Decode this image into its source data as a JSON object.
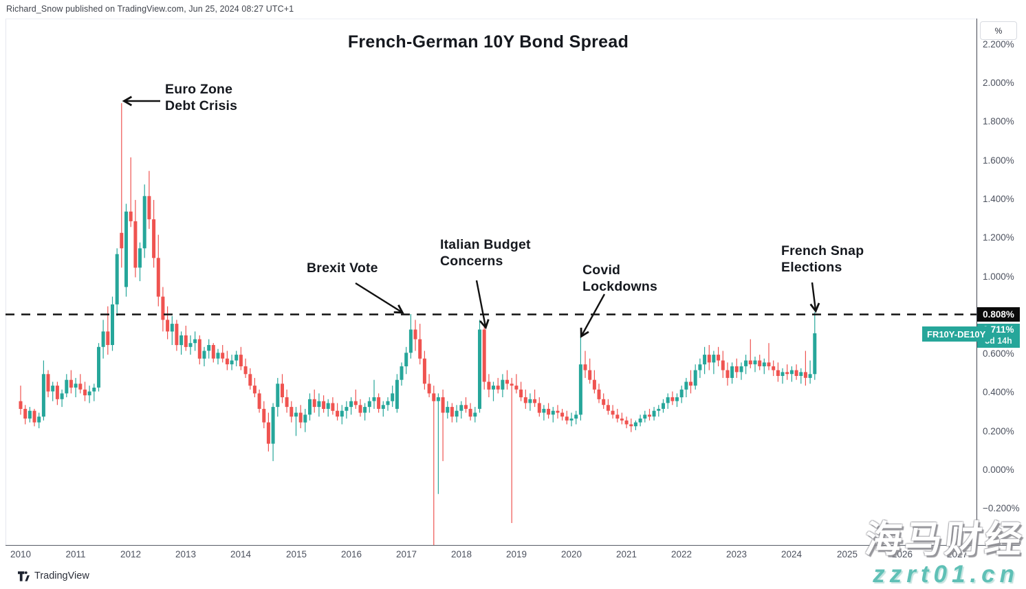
{
  "credit": "Richard_Snow published on TradingView.com, Jun 25, 2024 08:27 UTC+1",
  "chart_title": "French-German 10Y Bond Spread",
  "annotations": [
    {
      "id": "euro",
      "label": "Euro Zone\nDebt Crisis"
    },
    {
      "id": "brexit",
      "label": "Brexit Vote"
    },
    {
      "id": "italy",
      "label": "Italian Budget\nConcerns"
    },
    {
      "id": "covid",
      "label": "Covid\nLockdowns"
    },
    {
      "id": "french",
      "label": "French Snap\nElections"
    }
  ],
  "price_scale": {
    "unit_button": "%",
    "ticks": [
      {
        "v": 2.2,
        "label": "2.200%"
      },
      {
        "v": 2.0,
        "label": "2.000%"
      },
      {
        "v": 1.8,
        "label": "1.800%"
      },
      {
        "v": 1.6,
        "label": "1.600%"
      },
      {
        "v": 1.4,
        "label": "1.400%"
      },
      {
        "v": 1.2,
        "label": "1.200%"
      },
      {
        "v": 1.0,
        "label": "1.000%"
      },
      {
        "v": 0.6,
        "label": "0.600%"
      },
      {
        "v": 0.4,
        "label": "0.400%"
      },
      {
        "v": 0.2,
        "label": "0.200%"
      },
      {
        "v": 0.0,
        "label": "0.000%"
      },
      {
        "v": -0.2,
        "label": "−0.200%"
      }
    ],
    "dashed_level_label": "0.808%",
    "last_price_label": "0.711%",
    "countdown": "3d 14h",
    "series_tag": "FR10Y-DE10Y"
  },
  "time_scale": {
    "years": [
      2010,
      2011,
      2012,
      2013,
      2014,
      2015,
      2016,
      2017,
      2018,
      2019,
      2020,
      2021,
      2022,
      2023,
      2024,
      2025,
      2026,
      2027
    ]
  },
  "footer": {
    "brand": "TradingView"
  },
  "watermark": {
    "line1": "海马财经",
    "line2": "zzrt01.cn"
  },
  "colors": {
    "up": "#26a69a",
    "down": "#ef5350",
    "dashed": "#111111",
    "accent": "#26a69a",
    "last_label_bg": "#0b0b0b"
  },
  "chart_data": {
    "type": "candlestick",
    "symbol": "FR10Y-DE10Y",
    "title": "French-German 10Y Bond Spread",
    "unit": "percent",
    "interval": "1M",
    "start": "2010-01",
    "end": "2024-06",
    "dashed_level": 0.808,
    "last_close": 0.711,
    "ylim": [
      -0.384,
      2.34
    ],
    "y_tick_step": 0.2,
    "x_years_labeled": [
      2010,
      2011,
      2012,
      2013,
      2014,
      2015,
      2016,
      2017,
      2018,
      2019,
      2020,
      2021,
      2022,
      2023,
      2024,
      2025,
      2026,
      2027
    ],
    "events": [
      {
        "label": "Euro Zone Debt Crisis",
        "date": "2011-11",
        "value": 1.9
      },
      {
        "label": "Brexit Vote",
        "date": "2017-02",
        "value": 0.81
      },
      {
        "label": "Italian Budget Concerns",
        "date": "2018-05",
        "value": 0.78
      },
      {
        "label": "Covid Lockdowns",
        "date": "2020-03",
        "value": 0.7
      },
      {
        "label": "French Snap Elections",
        "date": "2024-06",
        "value": 0.82
      }
    ],
    "ohlc_note": "monthly [open,high,low,close] in %, Jan 2010 - Jun 2024, values read off chart",
    "ohlc": [
      [
        0.36,
        0.44,
        0.29,
        0.32
      ],
      [
        0.32,
        0.34,
        0.24,
        0.27
      ],
      [
        0.27,
        0.33,
        0.25,
        0.31
      ],
      [
        0.31,
        0.32,
        0.23,
        0.25
      ],
      [
        0.25,
        0.3,
        0.22,
        0.28
      ],
      [
        0.28,
        0.57,
        0.26,
        0.5
      ],
      [
        0.5,
        0.52,
        0.38,
        0.41
      ],
      [
        0.41,
        0.46,
        0.36,
        0.44
      ],
      [
        0.44,
        0.46,
        0.34,
        0.37
      ],
      [
        0.37,
        0.42,
        0.33,
        0.4
      ],
      [
        0.4,
        0.5,
        0.38,
        0.47
      ],
      [
        0.47,
        0.52,
        0.4,
        0.43
      ],
      [
        0.43,
        0.48,
        0.38,
        0.45
      ],
      [
        0.45,
        0.5,
        0.4,
        0.42
      ],
      [
        0.42,
        0.46,
        0.36,
        0.39
      ],
      [
        0.39,
        0.44,
        0.35,
        0.41
      ],
      [
        0.41,
        0.45,
        0.36,
        0.43
      ],
      [
        0.43,
        0.66,
        0.41,
        0.64
      ],
      [
        0.64,
        0.78,
        0.58,
        0.72
      ],
      [
        0.72,
        0.85,
        0.6,
        0.65
      ],
      [
        0.65,
        0.9,
        0.62,
        0.86
      ],
      [
        0.86,
        1.15,
        0.8,
        1.12
      ],
      [
        1.23,
        1.9,
        1.05,
        1.15
      ],
      [
        0.95,
        1.38,
        0.9,
        1.34
      ],
      [
        1.34,
        1.62,
        1.26,
        1.29
      ],
      [
        1.29,
        1.4,
        1.0,
        1.05
      ],
      [
        1.05,
        1.18,
        0.98,
        1.15
      ],
      [
        1.15,
        1.48,
        1.1,
        1.42
      ],
      [
        1.42,
        1.55,
        1.25,
        1.3
      ],
      [
        1.3,
        1.4,
        1.05,
        1.1
      ],
      [
        1.1,
        1.22,
        0.85,
        0.9
      ],
      [
        0.9,
        0.95,
        0.72,
        0.78
      ],
      [
        0.78,
        0.85,
        0.68,
        0.72
      ],
      [
        0.72,
        0.8,
        0.65,
        0.76
      ],
      [
        0.76,
        0.78,
        0.62,
        0.65
      ],
      [
        0.65,
        0.72,
        0.6,
        0.7
      ],
      [
        0.7,
        0.75,
        0.62,
        0.64
      ],
      [
        0.64,
        0.7,
        0.6,
        0.66
      ],
      [
        0.66,
        0.72,
        0.62,
        0.68
      ],
      [
        0.68,
        0.7,
        0.55,
        0.58
      ],
      [
        0.58,
        0.64,
        0.54,
        0.62
      ],
      [
        0.62,
        0.68,
        0.58,
        0.65
      ],
      [
        0.65,
        0.66,
        0.56,
        0.58
      ],
      [
        0.58,
        0.63,
        0.55,
        0.61
      ],
      [
        0.61,
        0.65,
        0.56,
        0.58
      ],
      [
        0.58,
        0.62,
        0.52,
        0.55
      ],
      [
        0.55,
        0.6,
        0.52,
        0.57
      ],
      [
        0.57,
        0.62,
        0.54,
        0.6
      ],
      [
        0.6,
        0.64,
        0.52,
        0.54
      ],
      [
        0.54,
        0.58,
        0.48,
        0.5
      ],
      [
        0.5,
        0.53,
        0.42,
        0.44
      ],
      [
        0.44,
        0.48,
        0.38,
        0.4
      ],
      [
        0.4,
        0.42,
        0.3,
        0.32
      ],
      [
        0.32,
        0.36,
        0.22,
        0.25
      ],
      [
        0.25,
        0.3,
        0.1,
        0.14
      ],
      [
        0.14,
        0.35,
        0.05,
        0.33
      ],
      [
        0.33,
        0.48,
        0.28,
        0.45
      ],
      [
        0.45,
        0.5,
        0.35,
        0.38
      ],
      [
        0.38,
        0.42,
        0.3,
        0.33
      ],
      [
        0.33,
        0.36,
        0.25,
        0.28
      ],
      [
        0.28,
        0.33,
        0.18,
        0.3
      ],
      [
        0.3,
        0.34,
        0.22,
        0.25
      ],
      [
        0.25,
        0.32,
        0.2,
        0.29
      ],
      [
        0.29,
        0.4,
        0.26,
        0.37
      ],
      [
        0.37,
        0.42,
        0.3,
        0.33
      ],
      [
        0.33,
        0.4,
        0.28,
        0.36
      ],
      [
        0.36,
        0.39,
        0.3,
        0.32
      ],
      [
        0.32,
        0.37,
        0.28,
        0.35
      ],
      [
        0.35,
        0.38,
        0.29,
        0.31
      ],
      [
        0.31,
        0.35,
        0.26,
        0.28
      ],
      [
        0.28,
        0.34,
        0.24,
        0.31
      ],
      [
        0.31,
        0.36,
        0.27,
        0.33
      ],
      [
        0.33,
        0.38,
        0.29,
        0.36
      ],
      [
        0.36,
        0.42,
        0.32,
        0.34
      ],
      [
        0.34,
        0.37,
        0.28,
        0.3
      ],
      [
        0.3,
        0.35,
        0.26,
        0.33
      ],
      [
        0.33,
        0.38,
        0.3,
        0.36
      ],
      [
        0.36,
        0.47,
        0.32,
        0.38
      ],
      [
        0.38,
        0.4,
        0.3,
        0.32
      ],
      [
        0.32,
        0.36,
        0.28,
        0.34
      ],
      [
        0.34,
        0.38,
        0.31,
        0.36
      ],
      [
        0.36,
        0.44,
        0.33,
        0.4
      ],
      [
        0.32,
        0.5,
        0.3,
        0.47
      ],
      [
        0.47,
        0.56,
        0.44,
        0.54
      ],
      [
        0.54,
        0.64,
        0.5,
        0.61
      ],
      [
        0.61,
        0.81,
        0.58,
        0.73
      ],
      [
        0.73,
        0.78,
        0.62,
        0.68
      ],
      [
        0.68,
        0.76,
        0.55,
        0.58
      ],
      [
        0.58,
        0.62,
        0.42,
        0.45
      ],
      [
        0.45,
        0.5,
        0.38,
        0.4
      ],
      [
        0.4,
        0.44,
        -0.4,
        0.36
      ],
      [
        0.36,
        0.4,
        -0.12,
        0.38
      ],
      [
        0.38,
        0.42,
        0.05,
        0.3
      ],
      [
        0.3,
        0.36,
        0.27,
        0.33
      ],
      [
        0.33,
        0.35,
        0.25,
        0.28
      ],
      [
        0.28,
        0.34,
        0.25,
        0.31
      ],
      [
        0.31,
        0.36,
        0.27,
        0.34
      ],
      [
        0.34,
        0.38,
        0.3,
        0.32
      ],
      [
        0.32,
        0.35,
        0.26,
        0.28
      ],
      [
        0.28,
        0.33,
        0.25,
        0.3
      ],
      [
        0.32,
        0.78,
        0.3,
        0.73
      ],
      [
        0.73,
        0.75,
        0.42,
        0.46
      ],
      [
        0.46,
        0.5,
        0.38,
        0.42
      ],
      [
        0.42,
        0.46,
        0.36,
        0.44
      ],
      [
        0.44,
        0.48,
        0.4,
        0.42
      ],
      [
        0.42,
        0.5,
        0.38,
        0.47
      ],
      [
        0.47,
        0.52,
        0.42,
        0.45
      ],
      [
        0.45,
        0.48,
        -0.27,
        0.44
      ],
      [
        0.44,
        0.5,
        0.4,
        0.42
      ],
      [
        0.42,
        0.46,
        0.36,
        0.38
      ],
      [
        0.38,
        0.42,
        0.32,
        0.35
      ],
      [
        0.35,
        0.4,
        0.31,
        0.37
      ],
      [
        0.37,
        0.42,
        0.33,
        0.35
      ],
      [
        0.35,
        0.38,
        0.28,
        0.3
      ],
      [
        0.3,
        0.34,
        0.26,
        0.32
      ],
      [
        0.32,
        0.35,
        0.27,
        0.29
      ],
      [
        0.29,
        0.33,
        0.25,
        0.31
      ],
      [
        0.31,
        0.34,
        0.27,
        0.3
      ],
      [
        0.3,
        0.32,
        0.26,
        0.28
      ],
      [
        0.28,
        0.31,
        0.24,
        0.26
      ],
      [
        0.26,
        0.3,
        0.23,
        0.27
      ],
      [
        0.27,
        0.31,
        0.24,
        0.29
      ],
      [
        0.29,
        0.7,
        0.26,
        0.55
      ],
      [
        0.55,
        0.62,
        0.48,
        0.52
      ],
      [
        0.52,
        0.58,
        0.45,
        0.47
      ],
      [
        0.47,
        0.52,
        0.4,
        0.42
      ],
      [
        0.42,
        0.45,
        0.35,
        0.37
      ],
      [
        0.37,
        0.4,
        0.32,
        0.34
      ],
      [
        0.34,
        0.37,
        0.29,
        0.31
      ],
      [
        0.31,
        0.34,
        0.27,
        0.29
      ],
      [
        0.29,
        0.32,
        0.25,
        0.27
      ],
      [
        0.27,
        0.3,
        0.24,
        0.26
      ],
      [
        0.26,
        0.28,
        0.22,
        0.24
      ],
      [
        0.24,
        0.27,
        0.2,
        0.23
      ],
      [
        0.23,
        0.26,
        0.21,
        0.25
      ],
      [
        0.25,
        0.29,
        0.23,
        0.27
      ],
      [
        0.27,
        0.31,
        0.25,
        0.29
      ],
      [
        0.29,
        0.32,
        0.26,
        0.28
      ],
      [
        0.28,
        0.33,
        0.26,
        0.31
      ],
      [
        0.31,
        0.34,
        0.28,
        0.32
      ],
      [
        0.32,
        0.37,
        0.3,
        0.35
      ],
      [
        0.35,
        0.4,
        0.32,
        0.38
      ],
      [
        0.38,
        0.41,
        0.34,
        0.36
      ],
      [
        0.36,
        0.4,
        0.33,
        0.38
      ],
      [
        0.38,
        0.44,
        0.35,
        0.42
      ],
      [
        0.42,
        0.48,
        0.38,
        0.46
      ],
      [
        0.46,
        0.52,
        0.4,
        0.44
      ],
      [
        0.44,
        0.55,
        0.42,
        0.52
      ],
      [
        0.52,
        0.58,
        0.48,
        0.55
      ],
      [
        0.55,
        0.64,
        0.5,
        0.6
      ],
      [
        0.6,
        0.65,
        0.52,
        0.56
      ],
      [
        0.56,
        0.62,
        0.5,
        0.6
      ],
      [
        0.6,
        0.64,
        0.54,
        0.57
      ],
      [
        0.57,
        0.62,
        0.48,
        0.52
      ],
      [
        0.52,
        0.56,
        0.44,
        0.48
      ],
      [
        0.48,
        0.56,
        0.45,
        0.54
      ],
      [
        0.54,
        0.58,
        0.48,
        0.51
      ],
      [
        0.51,
        0.56,
        0.47,
        0.54
      ],
      [
        0.54,
        0.6,
        0.5,
        0.57
      ],
      [
        0.57,
        0.68,
        0.53,
        0.55
      ],
      [
        0.55,
        0.59,
        0.51,
        0.57
      ],
      [
        0.57,
        0.6,
        0.52,
        0.54
      ],
      [
        0.54,
        0.58,
        0.5,
        0.56
      ],
      [
        0.56,
        0.66,
        0.52,
        0.54
      ],
      [
        0.54,
        0.57,
        0.49,
        0.52
      ],
      [
        0.52,
        0.56,
        0.46,
        0.49
      ],
      [
        0.49,
        0.53,
        0.45,
        0.51
      ],
      [
        0.51,
        0.55,
        0.47,
        0.5
      ],
      [
        0.5,
        0.54,
        0.46,
        0.52
      ],
      [
        0.52,
        0.55,
        0.47,
        0.49
      ],
      [
        0.49,
        0.53,
        0.45,
        0.51
      ],
      [
        0.51,
        0.62,
        0.44,
        0.48
      ],
      [
        0.48,
        0.57,
        0.45,
        0.5
      ],
      [
        0.5,
        0.82,
        0.47,
        0.711
      ]
    ]
  }
}
